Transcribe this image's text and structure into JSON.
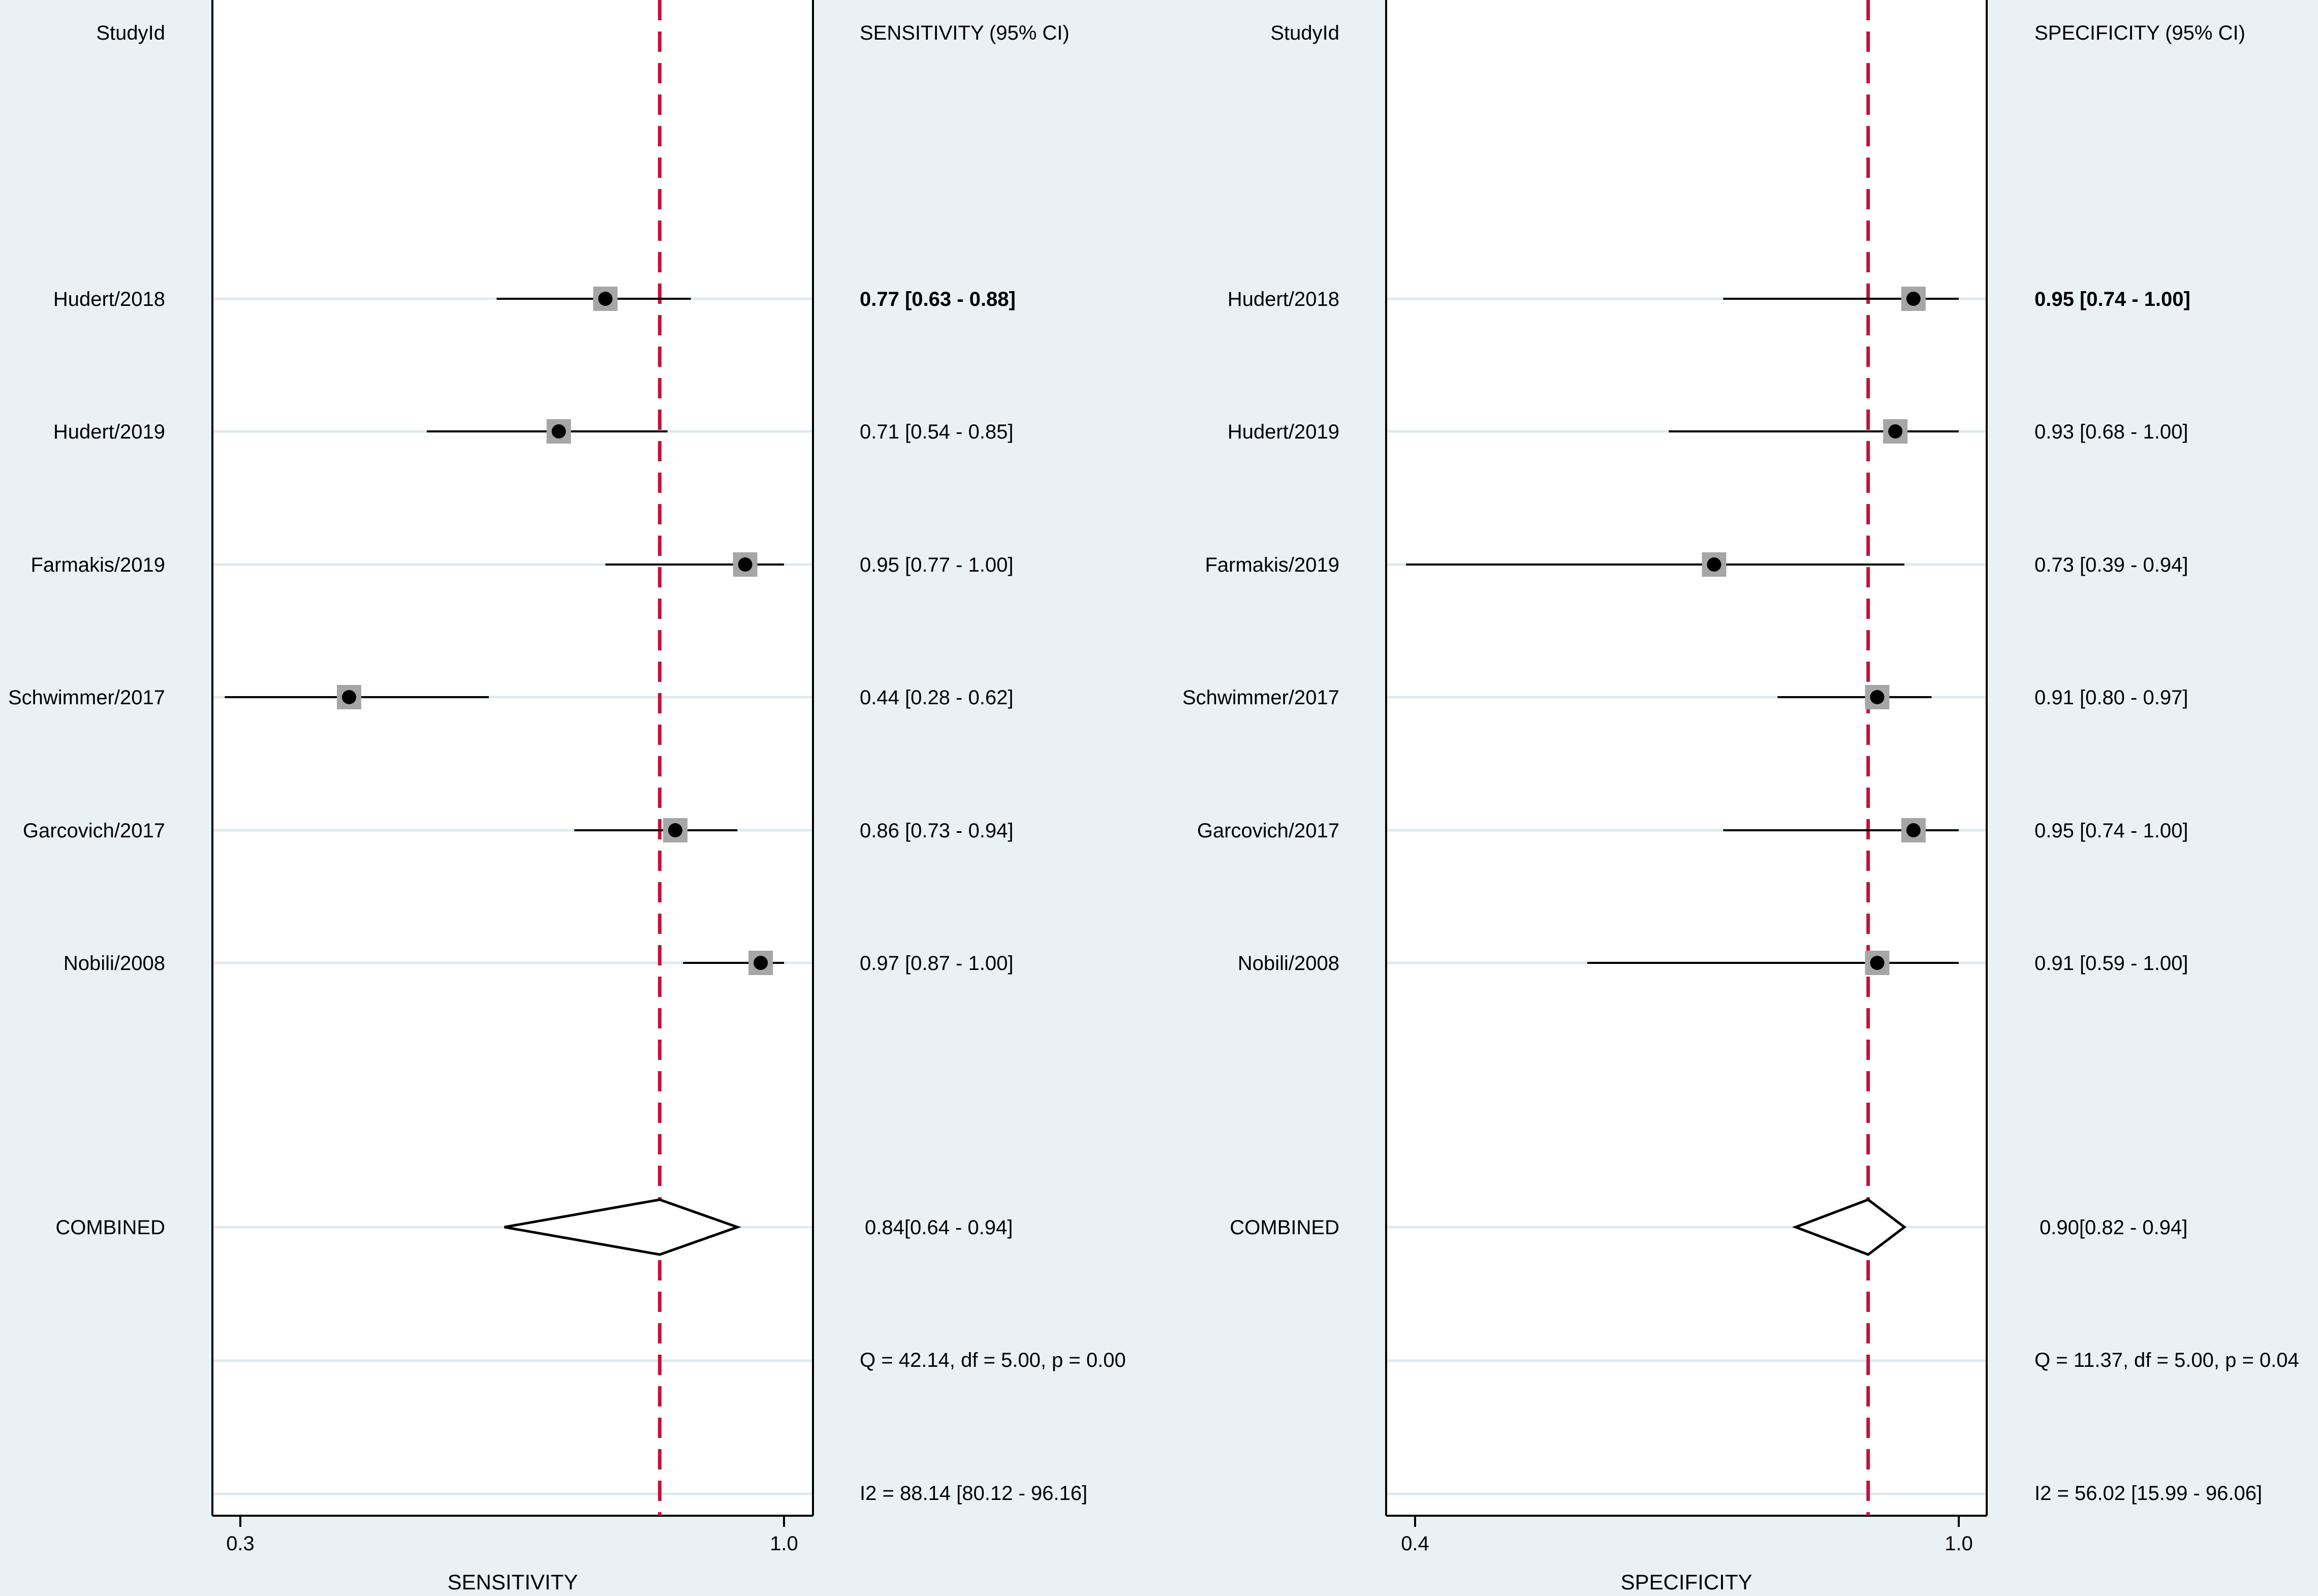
{
  "chart_data": [
    {
      "type": "forest",
      "study_header": "StudyId",
      "estimate_header": "SENSITIVITY (95% CI)",
      "xlabel": "SENSITIVITY",
      "xlim": [
        0.3,
        1.0
      ],
      "x_ticks": [
        "0.3",
        "1.0"
      ],
      "pooled_reference": 0.84,
      "studies": [
        {
          "name": "Hudert/2018",
          "estimate": 0.77,
          "lower": 0.63,
          "upper": 0.88,
          "label": "0.77 [0.63 - 0.88]"
        },
        {
          "name": "Hudert/2019",
          "estimate": 0.71,
          "lower": 0.54,
          "upper": 0.85,
          "label": "0.71 [0.54 - 0.85]"
        },
        {
          "name": "Farmakis/2019",
          "estimate": 0.95,
          "lower": 0.77,
          "upper": 1.0,
          "label": "0.95 [0.77 - 1.00]"
        },
        {
          "name": "Schwimmer/2017",
          "estimate": 0.44,
          "lower": 0.28,
          "upper": 0.62,
          "label": "0.44 [0.28 - 0.62]"
        },
        {
          "name": "Garcovich/2017",
          "estimate": 0.86,
          "lower": 0.73,
          "upper": 0.94,
          "label": "0.86 [0.73 - 0.94]"
        },
        {
          "name": "Nobili/2008",
          "estimate": 0.97,
          "lower": 0.87,
          "upper": 1.0,
          "label": "0.97 [0.87 - 1.00]"
        }
      ],
      "combined": {
        "name": "COMBINED",
        "estimate": 0.84,
        "lower": 0.64,
        "upper": 0.94,
        "label": "0.84[0.64 - 0.94]"
      },
      "heterogeneity_q": "Q = 42.14, df = 5.00, p =  0.00",
      "heterogeneity_i2": "I2 = 88.14 [80.12 - 96.16]"
    },
    {
      "type": "forest",
      "study_header": "StudyId",
      "estimate_header": "SPECIFICITY (95% CI)",
      "xlabel": "SPECIFICITY",
      "xlim": [
        0.4,
        1.0
      ],
      "x_ticks": [
        "0.4",
        "1.0"
      ],
      "pooled_reference": 0.9,
      "studies": [
        {
          "name": "Hudert/2018",
          "estimate": 0.95,
          "lower": 0.74,
          "upper": 1.0,
          "label": "0.95 [0.74 - 1.00]"
        },
        {
          "name": "Hudert/2019",
          "estimate": 0.93,
          "lower": 0.68,
          "upper": 1.0,
          "label": "0.93 [0.68 - 1.00]"
        },
        {
          "name": "Farmakis/2019",
          "estimate": 0.73,
          "lower": 0.39,
          "upper": 0.94,
          "label": "0.73 [0.39 - 0.94]"
        },
        {
          "name": "Schwimmer/2017",
          "estimate": 0.91,
          "lower": 0.8,
          "upper": 0.97,
          "label": "0.91 [0.80 - 0.97]"
        },
        {
          "name": "Garcovich/2017",
          "estimate": 0.95,
          "lower": 0.74,
          "upper": 1.0,
          "label": "0.95 [0.74 - 1.00]"
        },
        {
          "name": "Nobili/2008",
          "estimate": 0.91,
          "lower": 0.59,
          "upper": 1.0,
          "label": "0.91 [0.59 - 1.00]"
        }
      ],
      "combined": {
        "name": "COMBINED",
        "estimate": 0.9,
        "lower": 0.82,
        "upper": 0.94,
        "label": "0.90[0.82 - 0.94]"
      },
      "heterogeneity_q": "Q = 11.37, df = 5.00, p =  0.04",
      "heterogeneity_i2": "I2 = 56.02 [15.99 - 96.06]"
    }
  ],
  "colors": {
    "background": "#e9f1f4",
    "plot_region": "#ffffff",
    "reference_line": "#c0143c",
    "marker_box": "#a6a6a6",
    "marker_dot": "#000000",
    "row_line": "#dfe9ee"
  }
}
